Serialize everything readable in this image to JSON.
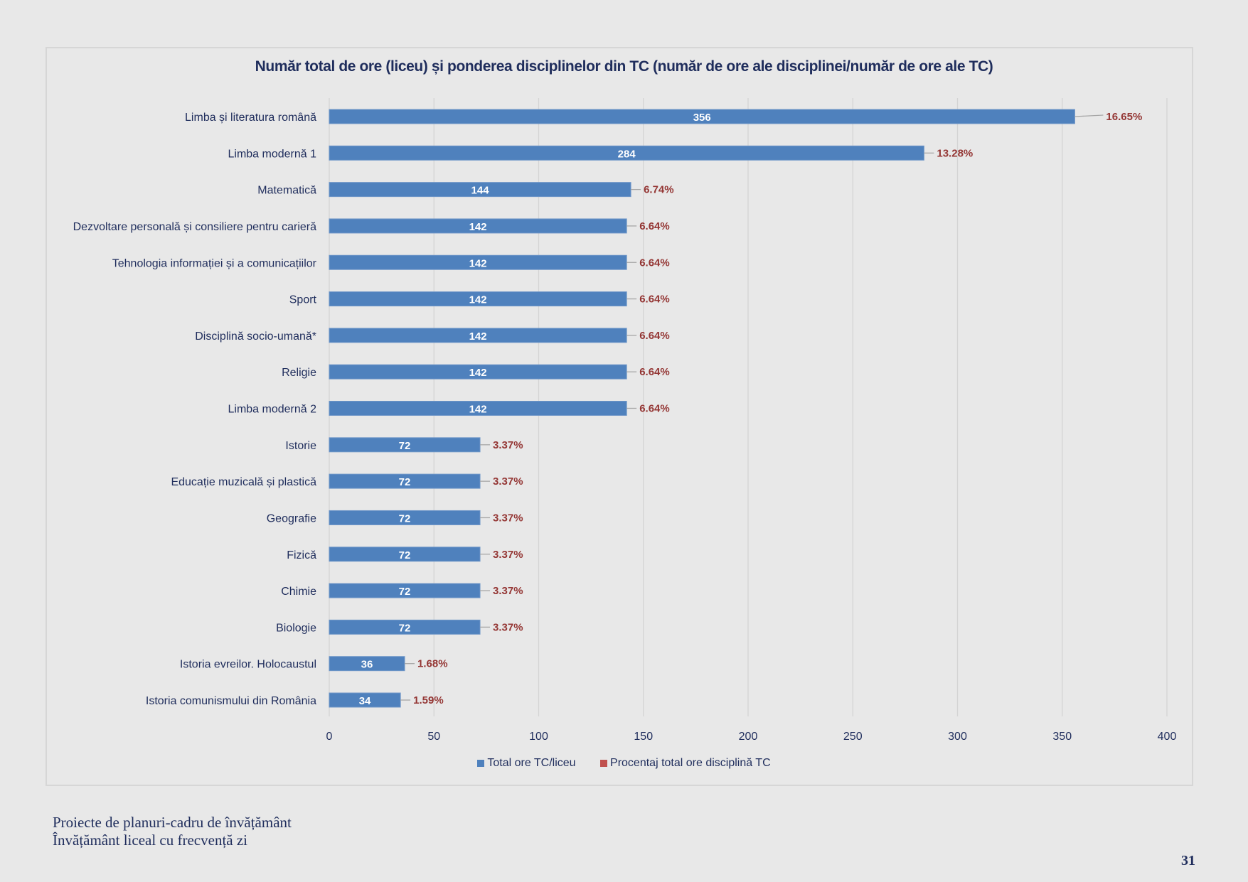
{
  "chart_data": {
    "type": "bar",
    "orientation": "horizontal",
    "title": "Număr total de ore (liceu) și ponderea disciplinelor din TC (număr de ore ale disciplinei/număr de ore ale TC)",
    "xlabel": "",
    "ylabel": "",
    "xlim": [
      0,
      400
    ],
    "x_ticks": [
      0,
      50,
      100,
      150,
      200,
      250,
      300,
      350,
      400
    ],
    "grid": "vertical",
    "legend_position": "bottom",
    "categories": [
      "Limba și literatura română",
      "Limba modernă 1",
      "Matematică",
      "Dezvoltare personală și consiliere pentru carieră",
      "Tehnologia informației și a comunicațiilor",
      "Sport",
      "Disciplină socio-umană*",
      "Religie",
      "Limba modernă 2",
      "Istorie",
      "Educație muzicală și plastică",
      "Geografie",
      "Fizică",
      "Chimie",
      "Biologie",
      "Istoria evreilor. Holocaustul",
      "Istoria comunismului din România"
    ],
    "series": [
      {
        "name": "Total ore TC/liceu",
        "color": "#4f81bd",
        "values": [
          356,
          284,
          144,
          142,
          142,
          142,
          142,
          142,
          142,
          72,
          72,
          72,
          72,
          72,
          72,
          36,
          34
        ]
      },
      {
        "name": "Procentaj total ore disciplină TC",
        "color": "#c0504d",
        "label_color": "#943634",
        "values": [
          "16.65%",
          "13.28%",
          "6.74%",
          "6.64%",
          "6.64%",
          "6.64%",
          "6.64%",
          "6.64%",
          "6.64%",
          "3.37%",
          "3.37%",
          "3.37%",
          "3.37%",
          "3.37%",
          "3.37%",
          "1.68%",
          "1.59%"
        ]
      }
    ]
  },
  "footer": {
    "line1": "Proiecte de planuri-cadru de învățământ",
    "line2": "Învățământ liceal cu frecvență zi"
  },
  "page_number": "31"
}
